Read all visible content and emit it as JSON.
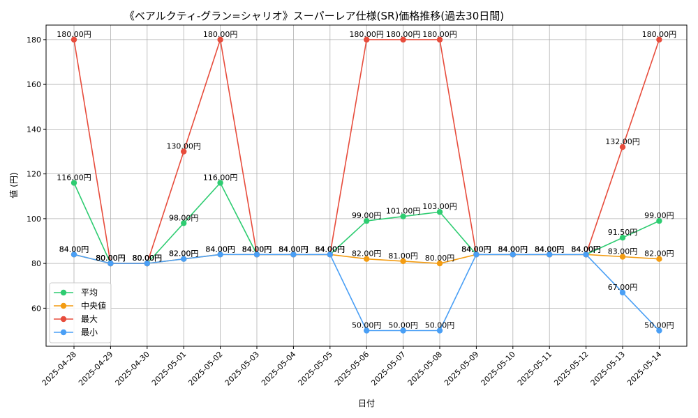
{
  "chart_data": {
    "type": "line",
    "title": "《ベアルクティ-グラン=シャリオ》スーパーレア仕様(SR)価格推移(過去30日間)",
    "xlabel": "日付",
    "ylabel": "値 (円)",
    "categories": [
      "2025-04-28",
      "2025-04-29",
      "2025-04-30",
      "2025-05-01",
      "2025-05-02",
      "2025-05-03",
      "2025-05-04",
      "2025-05-05",
      "2025-05-06",
      "2025-05-07",
      "2025-05-08",
      "2025-05-09",
      "2025-05-10",
      "2025-05-11",
      "2025-05-12",
      "2025-05-13",
      "2025-05-14"
    ],
    "yticks": [
      60,
      80,
      100,
      120,
      140,
      160,
      180
    ],
    "ylim": [
      43,
      186.5
    ],
    "grid": true,
    "legend_position": "lower-left",
    "label_suffix": "円",
    "series": [
      {
        "name": "平均",
        "color": "#2ecc71",
        "values": [
          116,
          80,
          80,
          98,
          116,
          84,
          84,
          84,
          99,
          101,
          103,
          84,
          84,
          84,
          84,
          91.5,
          99
        ]
      },
      {
        "name": "中央値",
        "color": "#f39c12",
        "values": [
          84,
          80,
          80,
          82,
          84,
          84,
          84,
          84,
          82,
          81,
          80,
          84,
          84,
          84,
          84,
          83,
          82
        ]
      },
      {
        "name": "最大",
        "color": "#e74c3c",
        "values": [
          180,
          80,
          80,
          130,
          180,
          84,
          84,
          84,
          180,
          180,
          180,
          84,
          84,
          84,
          84,
          132,
          180
        ]
      },
      {
        "name": "最小",
        "color": "#4a9ff5",
        "values": [
          84,
          80,
          80,
          82,
          84,
          84,
          84,
          84,
          50,
          50,
          50,
          84,
          84,
          84,
          84,
          67,
          50
        ]
      }
    ]
  }
}
